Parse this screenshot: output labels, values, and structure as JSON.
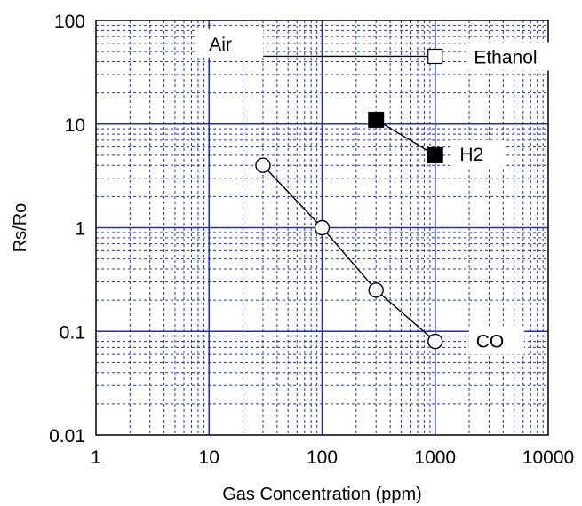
{
  "chart_data": {
    "type": "scatter",
    "title": "",
    "xlabel": "Gas Concentration (ppm)",
    "ylabel": "Rs/Ro",
    "x_scale": "log",
    "y_scale": "log",
    "xlim": [
      1,
      10000
    ],
    "ylim": [
      0.01,
      100
    ],
    "x_ticks": [
      "1",
      "10",
      "100",
      "1000",
      "10000"
    ],
    "y_ticks": [
      "0.01",
      "0.1",
      "1",
      "10",
      "100"
    ],
    "grid": true,
    "colors": {
      "grid": "#1f2fb8",
      "line": "#000000",
      "background": "#ffffff"
    },
    "series": [
      {
        "name": "Air",
        "marker": "none",
        "points": [
          {
            "x": 30,
            "y": 45
          },
          {
            "x": 1000,
            "y": 45
          }
        ]
      },
      {
        "name": "Ethanol",
        "marker": "square-open",
        "points": [
          {
            "x": 1000,
            "y": 45
          }
        ]
      },
      {
        "name": "H2",
        "marker": "square-filled",
        "points": [
          {
            "x": 300,
            "y": 11
          },
          {
            "x": 1000,
            "y": 5
          }
        ]
      },
      {
        "name": "CO",
        "marker": "circle-open",
        "points": [
          {
            "x": 30,
            "y": 4
          },
          {
            "x": 100,
            "y": 1
          },
          {
            "x": 300,
            "y": 0.25
          },
          {
            "x": 1000,
            "y": 0.08
          }
        ]
      }
    ]
  }
}
